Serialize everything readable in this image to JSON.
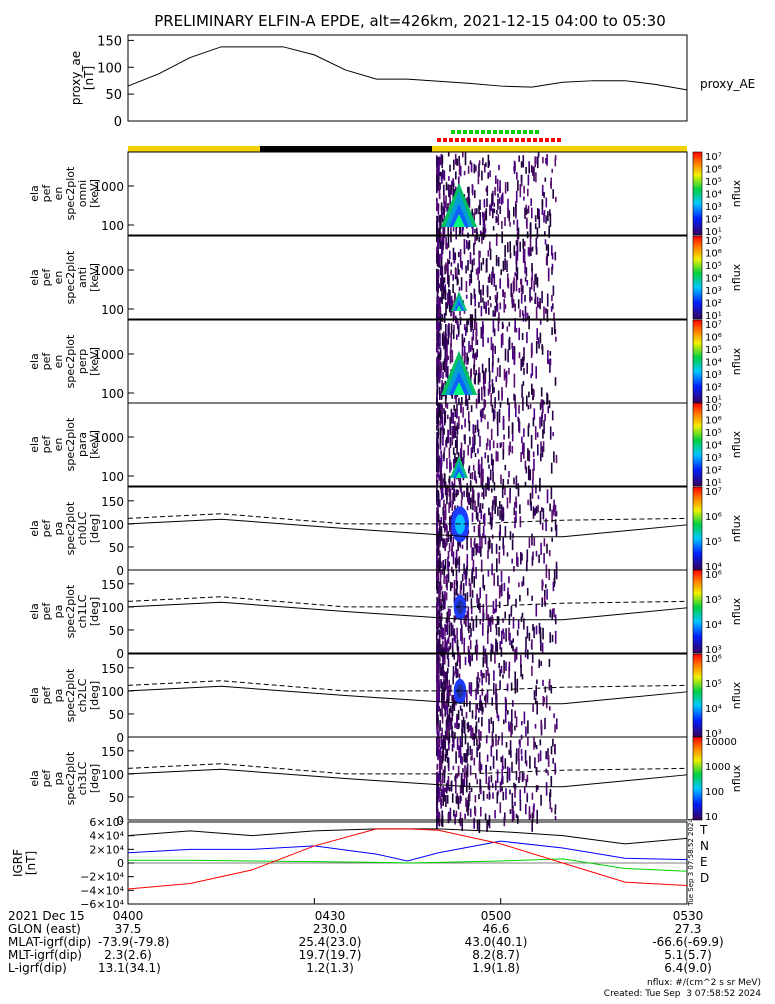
{
  "title": "PRELIMINARY ELFIN-A EPDE, alt=426km, 2021-12-15 04:00 to 05:30",
  "colors": {
    "yellow": "#f2d200",
    "red": "#ff0000",
    "green": "#00d000",
    "blue": "#0000ff",
    "black": "#000000"
  },
  "chart_data": [
    {
      "type": "line",
      "panel": "proxy_ae",
      "ylabel_lines": [
        "proxy_ae",
        "[nT]"
      ],
      "legend": "proxy_AE",
      "yticks": [
        "150",
        "100",
        "50",
        "0"
      ],
      "ylim": [
        0,
        160
      ],
      "x": [
        0,
        5,
        10,
        15,
        20,
        25,
        30,
        35,
        40,
        45,
        50,
        55,
        60,
        65,
        70,
        75,
        80,
        85,
        90
      ],
      "values": [
        65,
        88,
        118,
        138,
        138,
        138,
        123,
        95,
        78,
        78,
        74,
        70,
        65,
        63,
        72,
        75,
        75,
        68,
        58
      ]
    },
    {
      "type": "heatmap",
      "panels": [
        {
          "id": "omni",
          "label_lines": [
            "ela",
            "pef",
            "en",
            "spec2plot",
            "omni",
            "[keV]"
          ],
          "yticks": [
            "1000",
            "100"
          ]
        },
        {
          "id": "anti",
          "label_lines": [
            "ela",
            "pef",
            "en",
            "spec2plot",
            "anti",
            "[keV]"
          ],
          "yticks": [
            "1000",
            "100"
          ]
        },
        {
          "id": "perp",
          "label_lines": [
            "ela",
            "pef",
            "en",
            "spec2plot",
            "perp",
            "[keV]"
          ],
          "yticks": [
            "1000",
            "100"
          ]
        },
        {
          "id": "para",
          "label_lines": [
            "ela",
            "pef",
            "en",
            "spec2plot",
            "para",
            "[keV]"
          ],
          "yticks": [
            "1000",
            "100"
          ]
        }
      ],
      "colorbar_label": "nflux",
      "colorbar_ticks": [
        "10⁷",
        "10⁶",
        "10⁵",
        "10⁴",
        "10³",
        "10²",
        "10¹"
      ]
    },
    {
      "type": "heatmap",
      "panels": [
        {
          "id": "ch0LC",
          "label_lines": [
            "ela",
            "pef",
            "pa",
            "spec2plot",
            "ch0LC",
            "[deg]"
          ],
          "yticks": [
            "150",
            "100",
            "50",
            "0"
          ],
          "cbticks": [
            "10⁷",
            "10⁶",
            "10⁵",
            "10⁴"
          ]
        },
        {
          "id": "ch1LC",
          "label_lines": [
            "ela",
            "pef",
            "pa",
            "spec2plot",
            "ch1LC",
            "[deg]"
          ],
          "yticks": [
            "150",
            "100",
            "50",
            "0"
          ],
          "cbticks": [
            "10⁶",
            "10⁵",
            "10⁴",
            "10³"
          ]
        },
        {
          "id": "ch2LC",
          "label_lines": [
            "ela",
            "pef",
            "pa",
            "spec2plot",
            "ch2LC",
            "[deg]"
          ],
          "yticks": [
            "150",
            "100",
            "50",
            "0"
          ],
          "cbticks": [
            "10⁶",
            "10⁵",
            "10⁴",
            "10³"
          ]
        },
        {
          "id": "ch3LC",
          "label_lines": [
            "ela",
            "pef",
            "pa",
            "spec2plot",
            "ch3LC",
            "[deg]"
          ],
          "yticks": [
            "150",
            "100",
            "50",
            "0"
          ],
          "cbticks": [
            "10000",
            "1000",
            "100",
            "10"
          ]
        }
      ],
      "colorbar_label": "nflux"
    },
    {
      "type": "line",
      "panel": "igrf",
      "ylabel_lines": [
        "IGRF",
        "[nT]"
      ],
      "yticks": [
        "6×10⁴",
        "4×10⁴",
        "2×10⁴",
        "0",
        "−2×10⁴",
        "−4×10⁴",
        "−6×10⁴"
      ],
      "ylim": [
        -60000,
        60000
      ],
      "legend": [
        "T",
        "N",
        "E",
        "D"
      ],
      "x": [
        0,
        10,
        20,
        30,
        40,
        45,
        50,
        60,
        70,
        80,
        90
      ],
      "series": [
        {
          "name": "T",
          "values": [
            40000,
            47000,
            40000,
            47000,
            50000,
            50000,
            50000,
            46000,
            40000,
            28000,
            36000
          ]
        },
        {
          "name": "N",
          "values": [
            15000,
            20000,
            20000,
            25000,
            13000,
            3000,
            15000,
            32000,
            22000,
            7000,
            5000
          ]
        },
        {
          "name": "E",
          "values": [
            4000,
            4000,
            3000,
            2000,
            1000,
            0,
            1000,
            3000,
            6000,
            -8000,
            -12000
          ]
        },
        {
          "name": "D",
          "values": [
            -38000,
            -30000,
            -10000,
            25000,
            50000,
            50000,
            48000,
            28000,
            0,
            -28000,
            -33000
          ]
        }
      ]
    }
  ],
  "xaxis": {
    "rows": [
      {
        "label": "2021 Dec 15",
        "values": [
          "0400",
          "0430",
          "0500",
          "0530"
        ]
      },
      {
        "label": "GLON (east)",
        "values": [
          "37.5",
          "230.0",
          "46.6",
          "27.3"
        ]
      },
      {
        "label": "MLAT-igrf(dip)",
        "values": [
          "-73.9(-79.8)",
          "25.4(23.0)",
          "43.0(40.1)",
          "-66.6(-69.9)"
        ]
      },
      {
        "label": "MLT-igrf(dip)",
        "values": [
          "2.3(2.6)",
          "19.7(19.7)",
          "8.2(8.7)",
          "5.1(5.7)"
        ]
      },
      {
        "label": "L-igrf(dip)",
        "values": [
          "13.1(34.1)",
          "1.2(1.3)",
          "1.9(1.8)",
          "6.4(9.0)"
        ]
      }
    ]
  },
  "footer": {
    "units": "nflux: #/(cm^2 s sr MeV)",
    "created": "Created: Tue Sep  3 07:58:52 2024",
    "vertical_stamp": "Tue Sep  3 07:58:52 2024"
  }
}
